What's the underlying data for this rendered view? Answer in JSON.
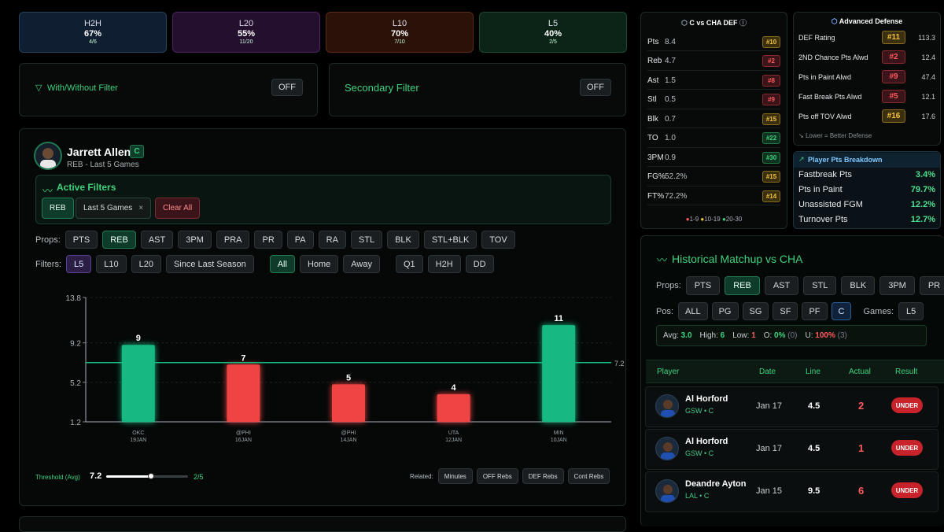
{
  "stats": [
    {
      "title": "H2H",
      "pct": "67%",
      "sub": "4/6",
      "bg": "#0f1e30",
      "border": "#24405e"
    },
    {
      "title": "L20",
      "pct": "55%",
      "sub": "11/20",
      "bg": "#24102e",
      "border": "#4a2360"
    },
    {
      "title": "L10",
      "pct": "70%",
      "sub": "7/10",
      "bg": "#2a1208",
      "border": "#5a2a15"
    },
    {
      "title": "L5",
      "pct": "40%",
      "sub": "2/5",
      "bg": "#0c2418",
      "border": "#1c4a32"
    }
  ],
  "filters": {
    "with_without_label": "With/Without Filter",
    "with_without_value": "OFF",
    "secondary_label": "Secondary Filter",
    "secondary_value": "OFF"
  },
  "player": {
    "name": "Jarrett Allen",
    "pos": "C",
    "sub": "REB - Last 5 Games"
  },
  "active_filters": {
    "title": "Active Filters",
    "chips": [
      "REB",
      "Last 5 Games"
    ],
    "clear": "Clear All",
    "remove_glyph": "×"
  },
  "props": {
    "label": "Props:",
    "items": [
      "PTS",
      "REB",
      "AST",
      "3PM",
      "PRA",
      "PR",
      "PA",
      "RA",
      "STL",
      "BLK",
      "STL+BLK",
      "TOV"
    ]
  },
  "filter_bar": {
    "label": "Filters:",
    "items": [
      "L5",
      "L10",
      "L20",
      "Since Last Season",
      "All",
      "Home",
      "Away",
      "Q1",
      "H2H",
      "DD"
    ]
  },
  "chart_data": {
    "type": "bar",
    "categories": [
      "OKC",
      "@PHI",
      "@PHI",
      "UTA",
      "MIN"
    ],
    "dates": [
      "19JAN",
      "16JAN",
      "14JAN",
      "12JAN",
      "10JAN"
    ],
    "values": [
      9,
      7,
      5,
      4,
      11
    ],
    "threshold": 7.2,
    "threshold_label": "7.2",
    "yticks": [
      "13.8",
      "9.2",
      "5.2",
      "1.2"
    ],
    "ylim": [
      1.2,
      13.8
    ],
    "colors": {
      "over": "#16b981",
      "under": "#ef4444",
      "line": "#16b981"
    }
  },
  "threshold": {
    "label": "Threshold (Avg)",
    "value": "7.2",
    "hits": "2/5",
    "slider_fraction": 0.55
  },
  "related": {
    "label": "Related:",
    "items": [
      "Minutes",
      "OFF Rebs",
      "DEF Rebs",
      "Cont Rebs"
    ]
  },
  "def": {
    "title": "C vs CHA DEF",
    "info_icon": "ⓘ",
    "rows": [
      {
        "n": "Pts",
        "v": "8.4",
        "r": "#10",
        "c": "y"
      },
      {
        "n": "Reb",
        "v": "4.7",
        "r": "#2",
        "c": "r"
      },
      {
        "n": "Ast",
        "v": "1.5",
        "r": "#8",
        "c": "r"
      },
      {
        "n": "Stl",
        "v": "0.5",
        "r": "#9",
        "c": "r"
      },
      {
        "n": "Blk",
        "v": "0.7",
        "r": "#15",
        "c": "y"
      },
      {
        "n": "TO",
        "v": "1.0",
        "r": "#22",
        "c": "g"
      },
      {
        "n": "3PM",
        "v": "0.9",
        "r": "#30",
        "c": "g"
      },
      {
        "n": "FG%",
        "v": "52.2%",
        "r": "#15",
        "c": "y"
      },
      {
        "n": "FT%",
        "v": "72.2%",
        "r": "#14",
        "c": "y"
      }
    ],
    "legend": [
      "1-9",
      "10-19",
      "20-30"
    ]
  },
  "adv": {
    "title": "Advanced Defense",
    "rows": [
      {
        "n": "DEF Rating",
        "r": "#11",
        "v": "113.3",
        "c": "y"
      },
      {
        "n": "2ND Chance Pts Alwd",
        "r": "#2",
        "v": "12.4",
        "c": "r"
      },
      {
        "n": "Pts in Paint Alwd",
        "r": "#9",
        "v": "47.4",
        "c": "r"
      },
      {
        "n": "Fast Break Pts Alwd",
        "r": "#5",
        "v": "12.1",
        "c": "r"
      },
      {
        "n": "Pts off TOV Alwd",
        "r": "#16",
        "v": "17.6",
        "c": "y"
      }
    ],
    "note": "Lower = Better Defense"
  },
  "breakdown": {
    "title": "Player Pts Breakdown",
    "rows": [
      {
        "n": "Fastbreak Pts",
        "v": "3.4%"
      },
      {
        "n": "Pts in Paint",
        "v": "79.7%"
      },
      {
        "n": "Unassisted FGM",
        "v": "12.2%"
      },
      {
        "n": "Turnover Pts",
        "v": "12.7%"
      }
    ]
  },
  "history": {
    "title": "Historical Matchup vs CHA",
    "props_label": "Props:",
    "props": [
      "PTS",
      "REB",
      "AST",
      "STL",
      "BLK",
      "3PM",
      "PR"
    ],
    "pos_label": "Pos:",
    "pos": [
      "ALL",
      "PG",
      "SG",
      "SF",
      "PF",
      "C"
    ],
    "games_label": "Games:",
    "games": [
      "L5"
    ],
    "summary": {
      "avg_l": "Avg:",
      "avg": "3.0",
      "high_l": "High:",
      "high": "6",
      "low_l": "Low:",
      "low": "1",
      "o_l": "O:",
      "o": "0%",
      "o_c": "(0)",
      "u_l": "U:",
      "u": "100%",
      "u_c": "(3)"
    },
    "headers": [
      "Player",
      "Date",
      "Line",
      "Actual",
      "Result"
    ],
    "rows": [
      {
        "name": "Al Horford",
        "team": "GSW • C",
        "date": "Jan 17",
        "line": "4.5",
        "actual": "2",
        "result": "UNDER"
      },
      {
        "name": "Al Horford",
        "team": "GSW • C",
        "date": "Jan 17",
        "line": "4.5",
        "actual": "1",
        "result": "UNDER"
      },
      {
        "name": "Deandre Ayton",
        "team": "LAL • C",
        "date": "Jan 15",
        "line": "9.5",
        "actual": "6",
        "result": "UNDER"
      }
    ]
  }
}
